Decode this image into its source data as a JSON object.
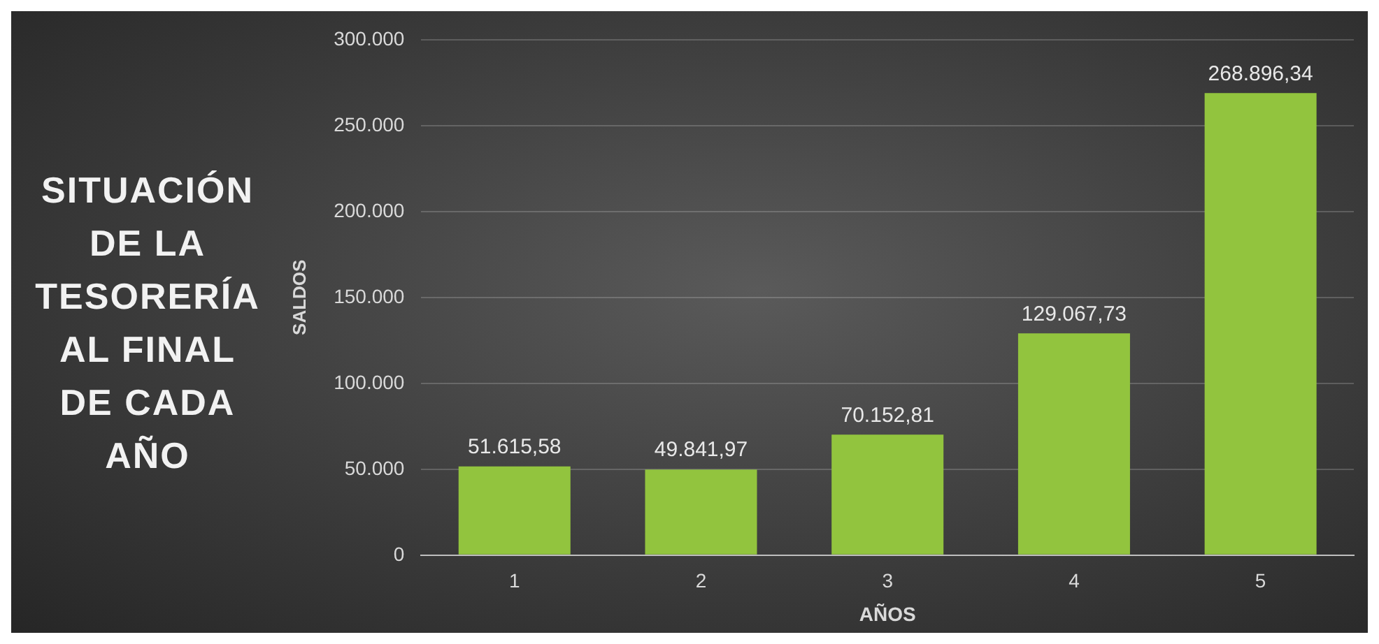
{
  "chart_data": {
    "type": "bar",
    "title": "SITUACIÓN DE LA TESORERÍA AL FINAL DE CADA AÑO",
    "xlabel": "AÑOS",
    "ylabel": "SALDOS",
    "categories": [
      "1",
      "2",
      "3",
      "4",
      "5"
    ],
    "values": [
      51615.58,
      49841.97,
      70152.81,
      129067.73,
      268896.34
    ],
    "value_labels": [
      "51.615,58",
      "49.841,97",
      "70.152,81",
      "129.067,73",
      "268.896,34"
    ],
    "color": "#92c43e",
    "ylim": [
      0,
      300000
    ],
    "yticks": [
      {
        "value": 0,
        "label": "0"
      },
      {
        "value": 50000,
        "label": "50.000"
      },
      {
        "value": 100000,
        "label": "100.000"
      },
      {
        "value": 150000,
        "label": "150.000"
      },
      {
        "value": 200000,
        "label": "200.000"
      },
      {
        "value": 250000,
        "label": "250.000"
      },
      {
        "value": 300000,
        "label": "300.000"
      }
    ],
    "grid": "y",
    "legend": false
  }
}
